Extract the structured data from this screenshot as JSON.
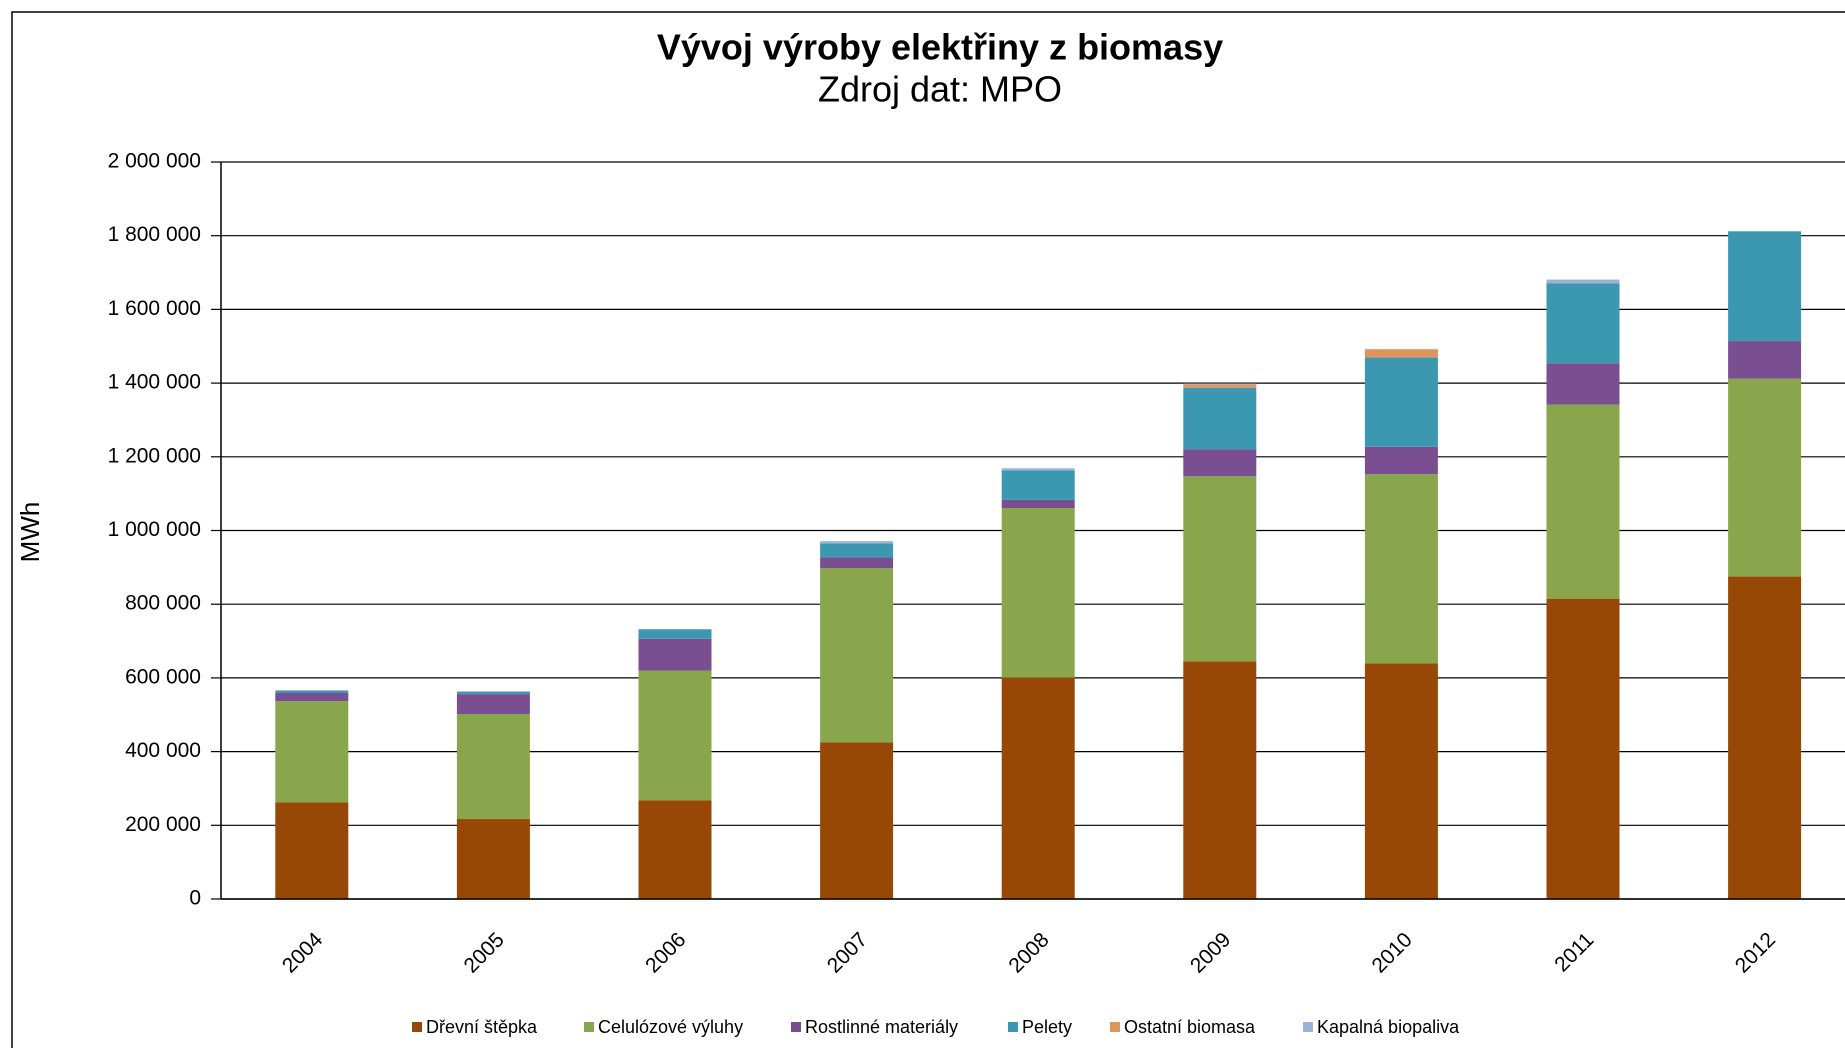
{
  "chart_data": {
    "type": "stacked_bar",
    "title": "Vývoj výroby elektřiny z biomasy",
    "subtitle": "Zdroj dat: MPO",
    "y_label": "MWh",
    "categories": [
      "2004",
      "2005",
      "2006",
      "2007",
      "2008",
      "2009",
      "2010",
      "2011",
      "2012"
    ],
    "series": [
      {
        "name": "Dřevní štěpka",
        "color": "#974706",
        "values": [
          262000,
          217000,
          268000,
          425000,
          601000,
          645000,
          639000,
          815000,
          875000
        ]
      },
      {
        "name": "Celulózové výluhy",
        "color": "#8aa64d",
        "values": [
          275000,
          285000,
          352000,
          473000,
          460000,
          502000,
          514000,
          527000,
          537000
        ]
      },
      {
        "name": "Rostlinné materiály",
        "color": "#7a4f92",
        "values": [
          22000,
          54000,
          86000,
          29000,
          22000,
          73000,
          74000,
          112000,
          102000
        ]
      },
      {
        "name": "Pelety",
        "color": "#3b98b0",
        "values": [
          6000,
          6000,
          26000,
          38000,
          80000,
          167000,
          243000,
          217000,
          298000
        ]
      },
      {
        "name": "Ostatní biomasa",
        "color": "#e0935a",
        "values": [
          0,
          0,
          0,
          0,
          0,
          9000,
          22000,
          0,
          0
        ]
      },
      {
        "name": "Kapalná biopaliva",
        "color": "#9bb3d8",
        "values": [
          2000,
          2000,
          0,
          6000,
          6000,
          3000,
          0,
          10000,
          0
        ]
      }
    ],
    "ylim": [
      0,
      2000000
    ],
    "yticks": [
      0,
      {
        "value": 200000,
        "label": "200 000"
      },
      {
        "value": 400000,
        "label": "400 000"
      },
      {
        "value": 600000,
        "label": "600 000"
      },
      {
        "value": 800000,
        "label": "800 000"
      },
      {
        "value": 1000000,
        "label": "1 000 000"
      },
      {
        "value": 1200000,
        "label": "1 200 000"
      },
      {
        "value": 1400000,
        "label": "1 400 000"
      },
      {
        "value": 1600000,
        "label": "1 600 000"
      },
      {
        "value": 1800000,
        "label": "1 800 000"
      },
      {
        "value": 2000000,
        "label": "2 000 000"
      }
    ],
    "grid": true,
    "legend": "bottom"
  }
}
